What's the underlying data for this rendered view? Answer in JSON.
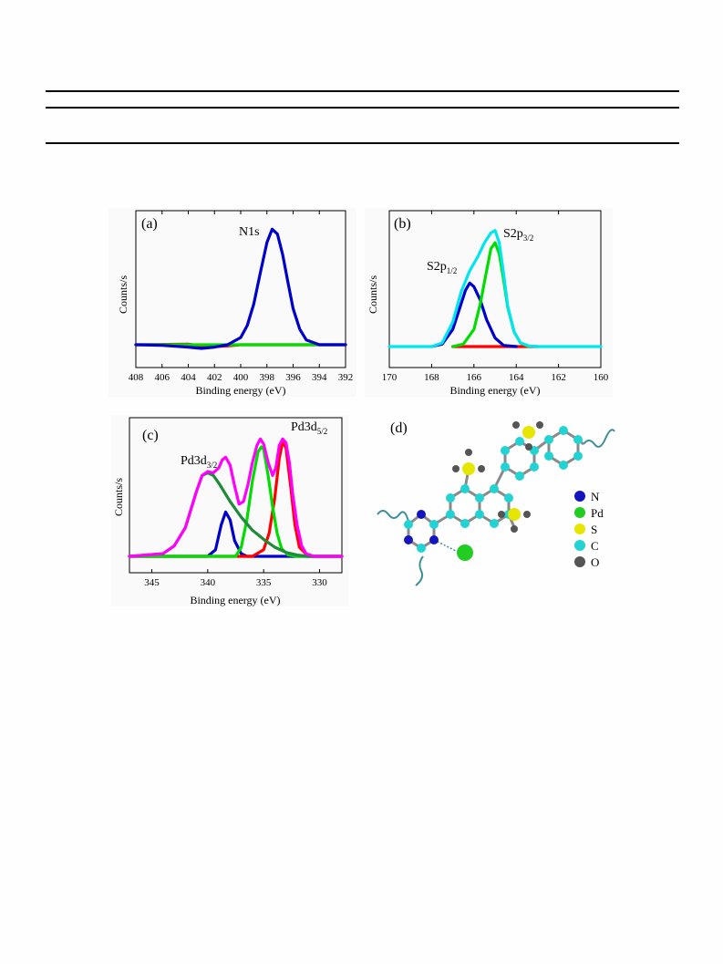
{
  "chart_data": [
    {
      "type": "line",
      "panel_label": "(a)",
      "xlabel": "Binding energy (eV)",
      "ylabel": "Counts/s",
      "xlim": [
        408,
        392
      ],
      "xticks": [
        408,
        406,
        404,
        402,
        400,
        398,
        396,
        394,
        392
      ],
      "ylim": [
        0,
        1
      ],
      "annotations": [
        {
          "text": "N1s"
        }
      ],
      "series": [
        {
          "color": "#ff0000",
          "x": [
            408,
            404,
            403,
            402,
            401,
            400,
            392
          ],
          "y": [
            0.0,
            0.005,
            -0.01,
            -0.015,
            -0.01,
            0.0,
            0.0
          ]
        },
        {
          "color": "#00dd00",
          "x": [
            408,
            392
          ],
          "y": [
            0.0,
            0.0
          ]
        },
        {
          "color": "#0000cc",
          "x": [
            408,
            406,
            404,
            403,
            402,
            401,
            400,
            399.5,
            399,
            398.5,
            398,
            397.6,
            397.2,
            396.8,
            396.4,
            396,
            395.5,
            395,
            394,
            392
          ],
          "y": [
            0.0,
            -0.005,
            -0.02,
            -0.03,
            -0.02,
            0.0,
            0.06,
            0.16,
            0.34,
            0.6,
            0.85,
            0.96,
            0.92,
            0.75,
            0.52,
            0.3,
            0.13,
            0.04,
            0.0,
            0.0
          ]
        }
      ]
    },
    {
      "type": "line",
      "panel_label": "(b)",
      "xlabel": "Binding energy (eV)",
      "ylabel": "Counts/s",
      "xlim": [
        170,
        160
      ],
      "xticks": [
        170,
        168,
        166,
        164,
        162,
        160
      ],
      "ylim": [
        0,
        1
      ],
      "annotations": [
        {
          "text": "S2p",
          "sub": "1/2"
        },
        {
          "text": "S2p",
          "sub": "3/2"
        }
      ],
      "series": [
        {
          "color": "#ff0000",
          "x": [
            167,
            163
          ],
          "y": [
            0.0,
            0.0
          ]
        },
        {
          "color": "#0000cc",
          "x": [
            168,
            167.5,
            167,
            166.7,
            166.4,
            166.2,
            166,
            165.7,
            165.4,
            165,
            164.6,
            164
          ],
          "y": [
            0.0,
            0.02,
            0.14,
            0.3,
            0.46,
            0.52,
            0.49,
            0.38,
            0.22,
            0.07,
            0.01,
            0.0
          ]
        },
        {
          "color": "#00dd00",
          "x": [
            167,
            166.5,
            166,
            165.7,
            165.4,
            165.2,
            165,
            164.8,
            164.6,
            164.4,
            164.1,
            163.8,
            163.4
          ],
          "y": [
            0.0,
            0.02,
            0.14,
            0.35,
            0.62,
            0.8,
            0.85,
            0.76,
            0.55,
            0.32,
            0.12,
            0.03,
            0.0
          ]
        },
        {
          "color": "#00e5ee",
          "x": [
            170,
            168,
            167.5,
            167,
            166.6,
            166.2,
            165.8,
            165.5,
            165.2,
            165,
            164.8,
            164.6,
            164.4,
            164.1,
            163.8,
            163.4,
            163,
            160
          ],
          "y": [
            0.0,
            0.0,
            0.03,
            0.2,
            0.45,
            0.62,
            0.74,
            0.85,
            0.93,
            0.95,
            0.85,
            0.6,
            0.33,
            0.12,
            0.03,
            0.005,
            0.0,
            0.0
          ]
        }
      ]
    },
    {
      "type": "line",
      "panel_label": "(c)",
      "xlabel": "Binding energy (eV)",
      "ylabel": "Counts/s",
      "xlim": [
        347,
        328
      ],
      "xticks": [
        345,
        340,
        335,
        330
      ],
      "ylim": [
        0,
        1
      ],
      "annotations": [
        {
          "text": "Pd3d",
          "sub": "3/2"
        },
        {
          "text": "Pd3d",
          "sub": "5/2"
        }
      ],
      "series": [
        {
          "color": "#0000cc",
          "x": [
            347,
            340,
            339.3,
            338.8,
            338.4,
            338,
            337.6,
            337,
            336.5,
            328
          ],
          "y": [
            0.0,
            0.0,
            0.05,
            0.24,
            0.34,
            0.28,
            0.12,
            0.02,
            0.0,
            0.0
          ]
        },
        {
          "color": "#ff0000",
          "x": [
            347,
            336,
            335,
            334.5,
            334,
            333.6,
            333.3,
            333,
            332.6,
            332.2,
            331.8,
            331,
            328
          ],
          "y": [
            0.0,
            0.0,
            0.05,
            0.18,
            0.45,
            0.75,
            0.88,
            0.83,
            0.55,
            0.24,
            0.07,
            0.0,
            0.0
          ]
        },
        {
          "color": "#00dd00",
          "x": [
            347,
            337.5,
            337,
            336.5,
            336,
            335.5,
            335.2,
            335,
            334.6,
            334.2,
            333.8,
            333.4,
            332.8,
            332,
            328
          ],
          "y": [
            0.0,
            0.0,
            0.07,
            0.28,
            0.58,
            0.8,
            0.84,
            0.82,
            0.62,
            0.38,
            0.18,
            0.06,
            0.01,
            0.0,
            0.0
          ]
        },
        {
          "color": "#1f8a3a",
          "x": [
            347,
            344,
            343,
            342,
            341,
            340.5,
            340,
            339.5,
            339,
            338,
            337,
            336,
            335,
            334,
            333,
            332,
            331,
            328
          ],
          "y": [
            0.0,
            0.02,
            0.08,
            0.22,
            0.5,
            0.62,
            0.64,
            0.62,
            0.56,
            0.42,
            0.3,
            0.2,
            0.13,
            0.07,
            0.03,
            0.01,
            0.0,
            0.0
          ]
        },
        {
          "color": "#ff00ff",
          "x": [
            347,
            344,
            343,
            342,
            341,
            340.5,
            340,
            339.5,
            339,
            338.7,
            338.4,
            338,
            337.6,
            337.2,
            336.8,
            336.4,
            336,
            335.6,
            335.3,
            335,
            334.6,
            334.2,
            333.9,
            333.6,
            333.3,
            333,
            332.7,
            332.4,
            332,
            331.6,
            331.2,
            330.5,
            328
          ],
          "y": [
            0.0,
            0.02,
            0.08,
            0.22,
            0.5,
            0.62,
            0.65,
            0.64,
            0.68,
            0.74,
            0.76,
            0.7,
            0.54,
            0.4,
            0.42,
            0.55,
            0.72,
            0.85,
            0.9,
            0.86,
            0.72,
            0.62,
            0.68,
            0.85,
            0.9,
            0.87,
            0.72,
            0.48,
            0.24,
            0.08,
            0.02,
            0.0,
            0.0
          ]
        }
      ]
    }
  ],
  "diagram_d": {
    "panel_label": "(d)",
    "legend": [
      {
        "label": "N",
        "color": "#1515c0"
      },
      {
        "label": "Pd",
        "color": "#22cc22"
      },
      {
        "label": "S",
        "color": "#e6e600"
      },
      {
        "label": "C",
        "color": "#22d3d3"
      },
      {
        "label": "O",
        "color": "#555555"
      }
    ]
  }
}
